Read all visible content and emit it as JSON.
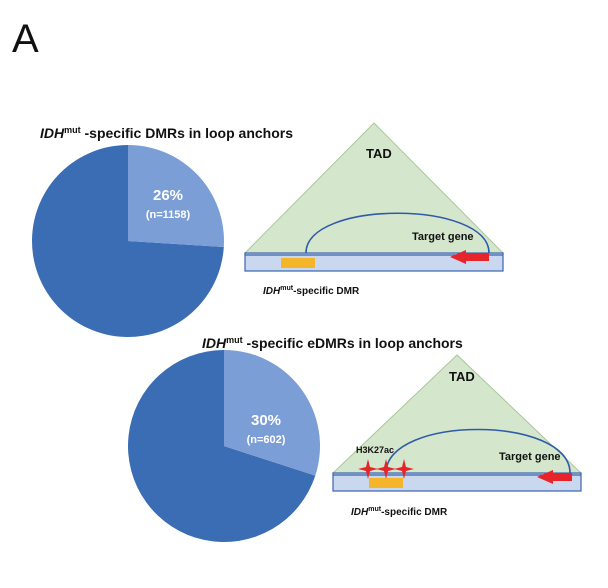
{
  "panel_label": "A",
  "colors": {
    "pie_major": "#3b6db4",
    "pie_minor": "#7b9ed6",
    "tad_fill": "#d4e6cc",
    "tad_stroke": "#a9c79c",
    "band_fill": "#c9d8ee",
    "band_stroke": "#3a63b0",
    "loop_stroke": "#2f5aa8",
    "dmr_box": "#f5b52a",
    "gene_arrow": "#e8242b",
    "h3k27ac_star": "#e8242b"
  },
  "chart_data": [
    {
      "type": "pie",
      "title": {
        "italic": "IDH",
        "superscript": "mut",
        "rest": " -specific DMRs in loop anchors"
      },
      "slices": [
        {
          "percent": 26,
          "value": 1158,
          "label": "26%",
          "n_label": "(n=1158)"
        },
        {
          "percent": 74,
          "value": null,
          "label": "",
          "n_label": ""
        }
      ]
    },
    {
      "type": "pie",
      "title": {
        "italic": "IDH",
        "superscript": "mut",
        "rest": " -specific eDMRs in loop anchors"
      },
      "slices": [
        {
          "percent": 30,
          "value": 602,
          "label": "30%",
          "n_label": "(n=602)"
        },
        {
          "percent": 70,
          "value": null,
          "label": "",
          "n_label": ""
        }
      ]
    }
  ],
  "diagrams": [
    {
      "tad_label": "TAD",
      "gene_label": "Target gene",
      "dmr_label": {
        "italic": "IDH",
        "superscript": "mut",
        "rest": "-specific DMR"
      }
    },
    {
      "tad_label": "TAD",
      "gene_label": "Target gene",
      "mark_label": "H3K27ac",
      "dmr_label": {
        "italic": "IDH",
        "superscript": "mut",
        "rest": "-specific DMR"
      }
    }
  ]
}
